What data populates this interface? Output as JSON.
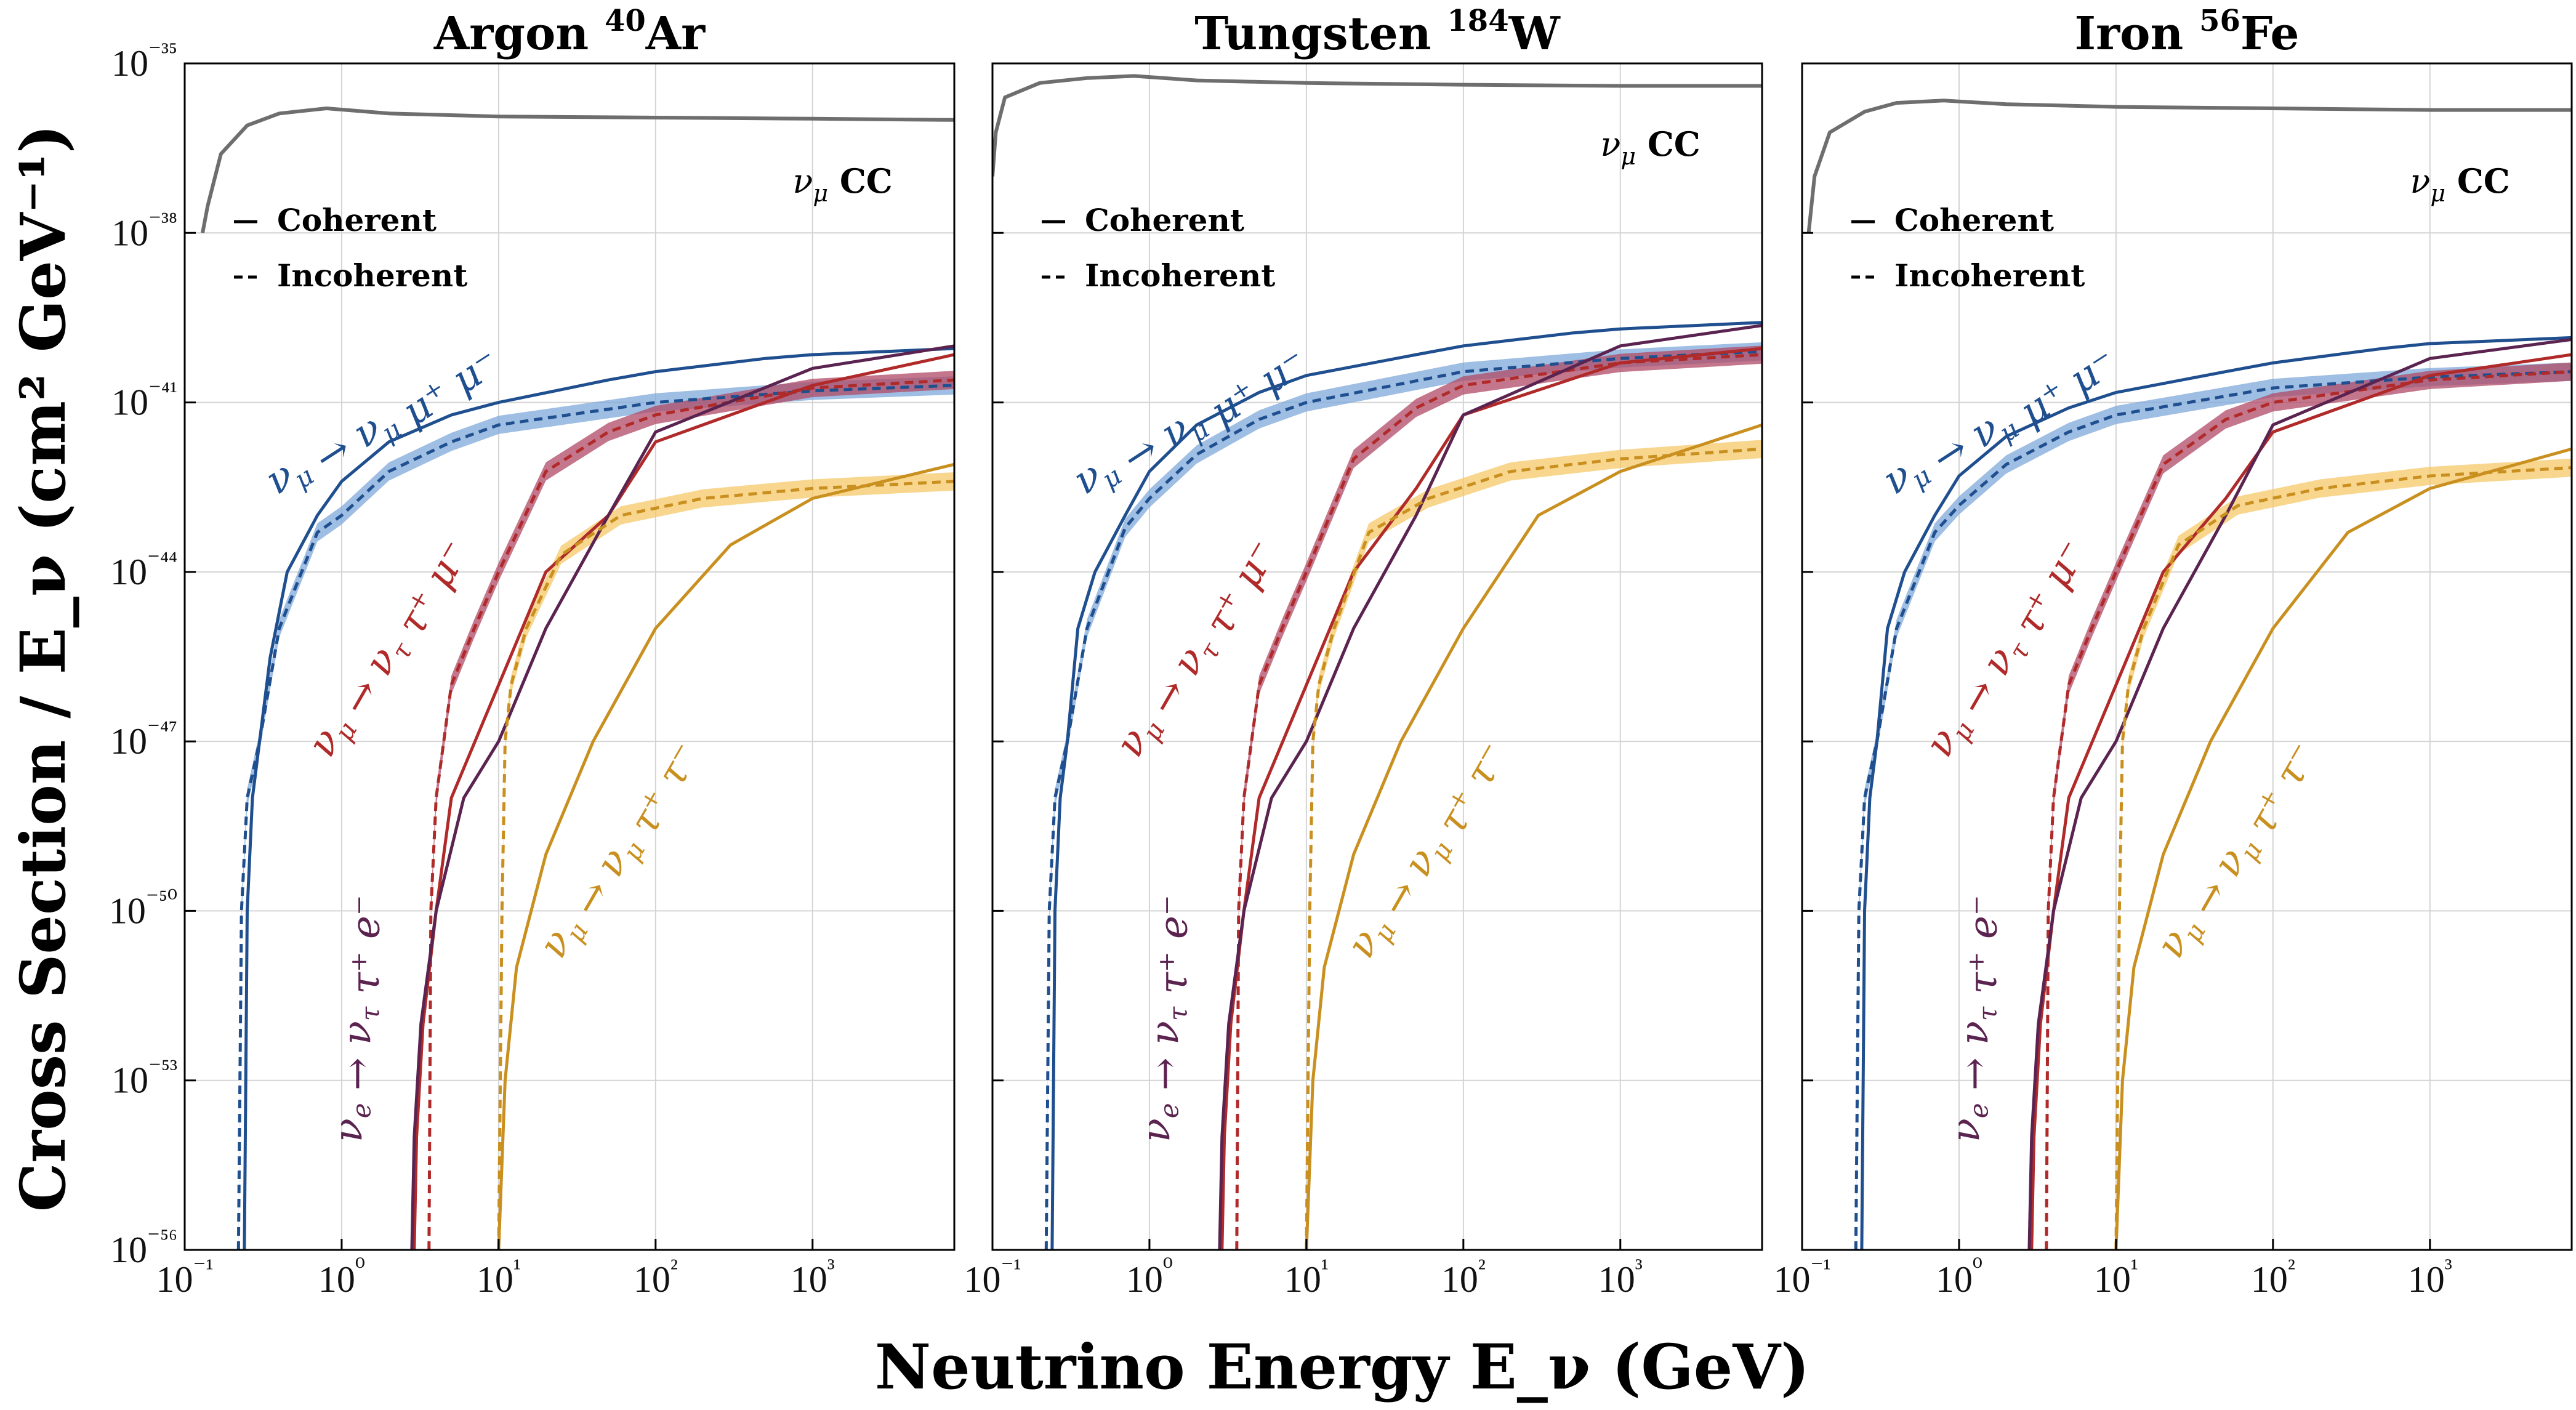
{
  "figure": {
    "ylabel": "Cross Section / E_ν (cm² GeV⁻¹)",
    "xlabel": "Neutrino Energy E_ν (GeV)",
    "legend": {
      "coherent": "Coherent",
      "incoherent": "Incoherent"
    },
    "cc_label": "ν_μ CC",
    "colors": {
      "blue": "#1f4f8f",
      "blue_band": "#7fa8da",
      "red": "#b02a2a",
      "red_band": "#b04a66",
      "purple": "#5b2350",
      "gold": "#c99020",
      "gold_band": "#f6c868",
      "cc": "#6e6e6e",
      "grid": "#d4d4d4"
    }
  },
  "chart_data": [
    {
      "type": "line",
      "title": "Argon ⁴⁰Ar",
      "xlabel": "Neutrino Energy E_ν (GeV)",
      "ylabel": "Cross Section / E_ν (cm² GeV⁻¹)",
      "xscale": "log",
      "yscale": "log",
      "xlim": [
        0.1,
        8000
      ],
      "ylim": [
        1e-56,
        1e-35
      ],
      "grid": true,
      "legend": "top-left",
      "x_ticks": [
        "10⁻¹",
        "10⁰",
        "10¹",
        "10²",
        "10³"
      ],
      "y_ticks": [
        "10⁻³⁵",
        "10⁻³⁸",
        "10⁻⁴¹",
        "10⁻⁴⁴",
        "10⁻⁴⁷",
        "10⁻⁵⁰",
        "10⁻⁵³",
        "10⁻⁵⁶"
      ],
      "series": [
        {
          "name": "ν_μ CC",
          "style": "solid",
          "color": "cc",
          "x": [
            0.13,
            0.14,
            0.17,
            0.25,
            0.4,
            0.8,
            2,
            10,
            100,
            1000,
            8000
          ],
          "y": [
            1e-38,
            3e-38,
            2.5e-37,
            8e-37,
            1.3e-36,
            1.6e-36,
            1.3e-36,
            1.15e-36,
            1.1e-36,
            1.05e-36,
            1e-36
          ]
        },
        {
          "name": "ν_μ → ν_μ μ⁺ μ⁻",
          "style": "solid",
          "color": "blue",
          "x": [
            0.24,
            0.25,
            0.27,
            0.3,
            0.35,
            0.45,
            0.7,
            1,
            2,
            5,
            10,
            50,
            100,
            500,
            1000,
            8000
          ],
          "y": [
            1e-56,
            1e-50,
            1e-48,
            1e-47,
            3e-46,
            1e-44,
            1e-43,
            4e-43,
            2e-42,
            6e-42,
            1e-41,
            2.5e-41,
            3.5e-41,
            6e-41,
            7e-41,
            9e-41
          ]
        },
        {
          "name": "ν_μ → ν_μ μ⁺ μ⁻",
          "style": "dashed",
          "color": "blue",
          "band": true,
          "x": [
            0.22,
            0.23,
            0.25,
            0.3,
            0.4,
            0.7,
            1,
            2,
            5,
            10,
            100,
            1000,
            8000
          ],
          "y": [
            1e-56,
            1e-50,
            1e-48,
            1e-47,
            1e-45,
            5e-44,
            1e-43,
            6e-43,
            2e-42,
            4e-42,
            1e-41,
            1.6e-41,
            2e-41
          ]
        },
        {
          "name": "ν_μ → ν_τ τ⁺ μ⁻",
          "style": "solid",
          "color": "red",
          "x": [
            2.9,
            3.0,
            3.3,
            4,
            5,
            10,
            20,
            50,
            100,
            1000,
            8000
          ],
          "y": [
            1e-56,
            1e-54,
            1e-52,
            1e-50,
            1e-48,
            1e-46,
            1e-44,
            1e-43,
            2e-42,
            2e-41,
            7e-41
          ]
        },
        {
          "name": "ν_μ → ν_τ τ⁺ μ⁻",
          "style": "dashed",
          "color": "red",
          "band": true,
          "x": [
            3.6,
            3.7,
            4,
            5,
            7,
            10,
            20,
            50,
            100,
            1000,
            8000
          ],
          "y": [
            1e-56,
            1e-50,
            1e-48,
            1e-46,
            1e-45,
            1e-44,
            6e-43,
            3e-42,
            6e-42,
            1.8e-41,
            2.5e-41
          ]
        },
        {
          "name": "ν_e → ν_τ τ⁺ e⁻",
          "style": "solid",
          "color": "purple",
          "x": [
            2.8,
            2.9,
            3.2,
            4,
            6,
            10,
            20,
            50,
            100,
            1000,
            8000
          ],
          "y": [
            1e-56,
            1e-54,
            1e-52,
            1e-50,
            1e-48,
            1e-47,
            1e-45,
            1e-43,
            3e-42,
            4e-41,
            1e-40
          ]
        },
        {
          "name": "ν_μ → ν_μ τ⁺ τ⁻",
          "style": "solid",
          "color": "gold",
          "x": [
            10,
            11,
            13,
            20,
            40,
            100,
            300,
            1000,
            8000
          ],
          "y": [
            1e-56,
            1e-53,
            1e-51,
            1e-49,
            1e-47,
            1e-45,
            3e-44,
            2e-43,
            8e-43
          ]
        },
        {
          "name": "ν_μ → ν_μ τ⁺ τ⁻",
          "style": "dashed",
          "color": "gold",
          "band": true,
          "x": [
            10,
            10.5,
            11,
            12,
            15,
            25,
            60,
            200,
            1000,
            8000
          ],
          "y": [
            1e-56,
            1e-50,
            1e-47,
            1e-46,
            1e-45,
            2e-44,
            1e-43,
            2e-43,
            3e-43,
            4e-43
          ]
        }
      ]
    },
    {
      "type": "line",
      "title": "Tungsten ¹⁸⁴W",
      "xlabel": "Neutrino Energy E_ν (GeV)",
      "ylabel": "Cross Section / E_ν (cm² GeV⁻¹)",
      "xscale": "log",
      "yscale": "log",
      "xlim": [
        0.1,
        8000
      ],
      "ylim": [
        1e-56,
        1e-35
      ],
      "grid": true,
      "legend": "top-left",
      "x_ticks": [
        "10⁻¹",
        "10⁰",
        "10¹",
        "10²",
        "10³"
      ],
      "y_ticks": [],
      "series": [
        {
          "name": "ν_μ CC",
          "style": "solid",
          "color": "cc",
          "x": [
            0.1,
            0.105,
            0.12,
            0.2,
            0.4,
            0.8,
            2,
            10,
            100,
            1000,
            8000
          ],
          "y": [
            1e-37,
            6e-37,
            2.5e-36,
            4.5e-36,
            5.5e-36,
            6e-36,
            5e-36,
            4.5e-36,
            4.2e-36,
            4e-36,
            4e-36
          ]
        },
        {
          "name": "ν_μ → ν_μ μ⁺ μ⁻",
          "style": "solid",
          "color": "blue",
          "x": [
            0.24,
            0.25,
            0.27,
            0.3,
            0.35,
            0.45,
            0.7,
            1,
            2,
            5,
            10,
            50,
            100,
            500,
            1000,
            8000
          ],
          "y": [
            1e-56,
            1e-50,
            1e-48,
            1e-47,
            1e-45,
            1e-44,
            1e-43,
            6e-43,
            4e-42,
            1.5e-41,
            3e-41,
            7e-41,
            1e-40,
            1.7e-40,
            2e-40,
            2.6e-40
          ]
        },
        {
          "name": "ν_μ → ν_μ μ⁺ μ⁻",
          "style": "dashed",
          "color": "blue",
          "band": true,
          "x": [
            0.22,
            0.23,
            0.25,
            0.3,
            0.4,
            0.7,
            1,
            2,
            5,
            10,
            100,
            1000,
            8000
          ],
          "y": [
            1e-56,
            1e-50,
            1e-48,
            1e-47,
            1e-45,
            6e-44,
            2e-43,
            1.2e-42,
            5e-42,
            1e-41,
            3.5e-41,
            6e-41,
            8e-41
          ]
        },
        {
          "name": "ν_μ → ν_τ τ⁺ μ⁻",
          "style": "solid",
          "color": "red",
          "x": [
            2.9,
            3.0,
            3.3,
            4,
            5,
            10,
            20,
            50,
            100,
            1000,
            8000
          ],
          "y": [
            1e-56,
            1e-54,
            1e-52,
            1e-50,
            1e-48,
            1e-46,
            1e-44,
            3e-43,
            6e-42,
            5e-41,
            9e-41
          ]
        },
        {
          "name": "ν_μ → ν_τ τ⁺ μ⁻",
          "style": "dashed",
          "color": "red",
          "band": true,
          "x": [
            3.6,
            3.7,
            4,
            5,
            7,
            10,
            20,
            50,
            100,
            1000,
            8000
          ],
          "y": [
            1e-56,
            1e-50,
            1e-48,
            1e-46,
            1e-45,
            1e-44,
            1e-42,
            8e-42,
            2e-41,
            5e-41,
            7e-41
          ]
        },
        {
          "name": "ν_e → ν_τ τ⁺ e⁻",
          "style": "solid",
          "color": "purple",
          "x": [
            2.8,
            2.9,
            3.2,
            4,
            6,
            10,
            20,
            50,
            100,
            1000,
            8000
          ],
          "y": [
            1e-56,
            1e-54,
            1e-52,
            1e-50,
            1e-48,
            1e-47,
            1e-45,
            1e-43,
            6e-42,
            1e-40,
            2.3e-40
          ]
        },
        {
          "name": "ν_μ → ν_μ τ⁺ τ⁻",
          "style": "solid",
          "color": "gold",
          "x": [
            10,
            11,
            13,
            20,
            40,
            100,
            300,
            1000,
            8000
          ],
          "y": [
            1e-56,
            1e-53,
            1e-51,
            1e-49,
            1e-47,
            1e-45,
            1e-43,
            6e-43,
            4e-42
          ]
        },
        {
          "name": "ν_μ → ν_μ τ⁺ τ⁻",
          "style": "dashed",
          "color": "gold",
          "band": true,
          "x": [
            10,
            10.5,
            11,
            12,
            15,
            25,
            60,
            200,
            1000,
            8000
          ],
          "y": [
            1e-56,
            1e-50,
            1e-47,
            1e-46,
            1e-45,
            5e-44,
            2e-43,
            6e-43,
            1e-42,
            1.5e-42
          ]
        }
      ]
    },
    {
      "type": "line",
      "title": "Iron ⁵⁶Fe",
      "xlabel": "Neutrino Energy E_ν (GeV)",
      "ylabel": "Cross Section / E_ν (cm² GeV⁻¹)",
      "xscale": "log",
      "yscale": "log",
      "xlim": [
        0.1,
        8000
      ],
      "ylim": [
        1e-56,
        1e-35
      ],
      "grid": true,
      "legend": "top-left",
      "x_ticks": [
        "10⁻¹",
        "10⁰",
        "10¹",
        "10²",
        "10³"
      ],
      "y_ticks": [],
      "series": [
        {
          "name": "ν_μ CC",
          "style": "solid",
          "color": "cc",
          "x": [
            0.11,
            0.12,
            0.15,
            0.25,
            0.4,
            0.8,
            2,
            10,
            100,
            1000,
            8000
          ],
          "y": [
            1e-38,
            1e-37,
            6e-37,
            1.4e-36,
            2e-36,
            2.2e-36,
            1.9e-36,
            1.7e-36,
            1.6e-36,
            1.5e-36,
            1.5e-36
          ]
        },
        {
          "name": "ν_μ → ν_μ μ⁺ μ⁻",
          "style": "solid",
          "color": "blue",
          "x": [
            0.24,
            0.25,
            0.27,
            0.3,
            0.35,
            0.45,
            0.7,
            1,
            2,
            5,
            10,
            50,
            100,
            500,
            1000,
            8000
          ],
          "y": [
            1e-56,
            1e-50,
            1e-48,
            1e-47,
            1e-45,
            1e-44,
            1e-43,
            5e-43,
            2.5e-42,
            8e-42,
            1.5e-41,
            3.5e-41,
            5e-41,
            9e-41,
            1.1e-40,
            1.4e-40
          ]
        },
        {
          "name": "ν_μ → ν_μ μ⁺ μ⁻",
          "style": "dashed",
          "color": "blue",
          "band": true,
          "x": [
            0.22,
            0.23,
            0.25,
            0.3,
            0.4,
            0.7,
            1,
            2,
            5,
            10,
            100,
            1000,
            8000
          ],
          "y": [
            1e-56,
            1e-50,
            1e-48,
            1e-47,
            1e-45,
            5e-44,
            1.5e-43,
            8e-43,
            3e-42,
            6e-42,
            1.8e-41,
            2.8e-41,
            3.5e-41
          ]
        },
        {
          "name": "ν_μ → ν_τ τ⁺ μ⁻",
          "style": "solid",
          "color": "red",
          "x": [
            2.9,
            3.0,
            3.3,
            4,
            5,
            10,
            20,
            50,
            100,
            1000,
            8000
          ],
          "y": [
            1e-56,
            1e-54,
            1e-52,
            1e-50,
            1e-48,
            1e-46,
            1e-44,
            2e-43,
            3e-42,
            3e-41,
            7e-41
          ]
        },
        {
          "name": "ν_μ → ν_τ τ⁺ μ⁻",
          "style": "dashed",
          "color": "red",
          "band": true,
          "x": [
            3.6,
            3.7,
            4,
            5,
            7,
            10,
            20,
            50,
            100,
            1000,
            8000
          ],
          "y": [
            1e-56,
            1e-50,
            1e-48,
            1e-46,
            1e-45,
            1e-44,
            8e-43,
            5e-42,
            1e-41,
            2.5e-41,
            3.5e-41
          ]
        },
        {
          "name": "ν_e → ν_τ τ⁺ e⁻",
          "style": "solid",
          "color": "purple",
          "x": [
            2.8,
            2.9,
            3.2,
            4,
            6,
            10,
            20,
            50,
            100,
            1000,
            8000
          ],
          "y": [
            1e-56,
            1e-54,
            1e-52,
            1e-50,
            1e-48,
            1e-47,
            1e-45,
            1e-43,
            4e-42,
            6e-41,
            1.3e-40
          ]
        },
        {
          "name": "ν_μ → ν_μ τ⁺ τ⁻",
          "style": "solid",
          "color": "gold",
          "x": [
            10,
            11,
            13,
            20,
            40,
            100,
            300,
            1000,
            8000
          ],
          "y": [
            1e-56,
            1e-53,
            1e-51,
            1e-49,
            1e-47,
            1e-45,
            5e-44,
            3e-43,
            1.5e-42
          ]
        },
        {
          "name": "ν_μ → ν_μ τ⁺ τ⁻",
          "style": "dashed",
          "color": "gold",
          "band": true,
          "x": [
            10,
            10.5,
            11,
            12,
            15,
            25,
            60,
            200,
            1000,
            8000
          ],
          "y": [
            1e-56,
            1e-50,
            1e-47,
            1e-46,
            1e-45,
            3e-44,
            1.5e-43,
            3e-43,
            5e-43,
            7e-43
          ]
        }
      ]
    }
  ]
}
